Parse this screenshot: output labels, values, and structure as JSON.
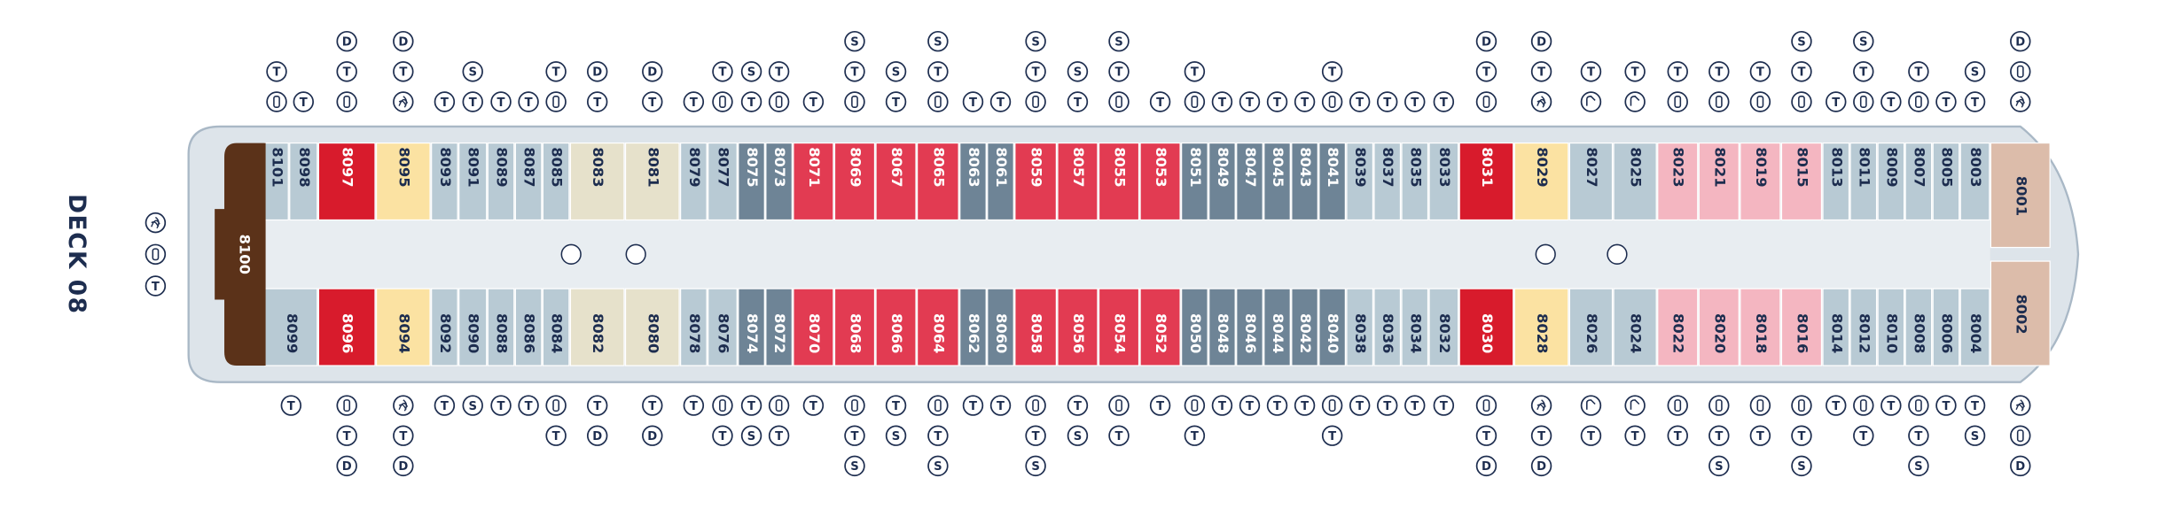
{
  "deck_label": "DECK 08",
  "deck_icons": [
    "T"
  ],
  "aft_cabin": {
    "number": "8100",
    "color": "#5b3219"
  },
  "cabins_top": [
    {
      "number": "8101",
      "color": "#b8cad4",
      "icons": [
        "T"
      ]
    },
    {
      "number": "8098",
      "color": "#b8cad4",
      "icons": [
        "T"
      ]
    },
    {
      "number": "8097",
      "color": "#d81b2c",
      "icons": [
        "D",
        "T"
      ]
    },
    {
      "number": "8095",
      "color": "#fbe2a2",
      "icons": [
        "D",
        "T"
      ]
    },
    {
      "number": "8093",
      "color": "#b8cad4",
      "icons": [
        "T"
      ]
    },
    {
      "number": "8091",
      "color": "#b8cad4",
      "icons": [
        "S",
        "T"
      ]
    },
    {
      "number": "8089",
      "color": "#b8cad4",
      "icons": [
        "T"
      ]
    },
    {
      "number": "8087",
      "color": "#b8cad4",
      "icons": [
        "T"
      ]
    },
    {
      "number": "8085",
      "color": "#b8cad4",
      "icons": [
        "T"
      ]
    },
    {
      "number": "8083",
      "color": "#e6e1cb",
      "icons": [
        "D",
        "T"
      ]
    },
    {
      "number": "8081",
      "color": "#e6e1cb",
      "icons": [
        "D",
        "T"
      ]
    },
    {
      "number": "8079",
      "color": "#b8cad4",
      "icons": [
        "T"
      ]
    },
    {
      "number": "8077",
      "color": "#b8cad4",
      "icons": [
        "T"
      ]
    },
    {
      "number": "8075",
      "color": "#6e8496",
      "icons": [
        "S",
        "T"
      ]
    },
    {
      "number": "8073",
      "color": "#6e8496",
      "icons": [
        "T"
      ]
    },
    {
      "number": "8071",
      "color": "#e23b52",
      "icons": [
        "T"
      ]
    },
    {
      "number": "8069",
      "color": "#e23b52",
      "icons": [
        "S",
        "T"
      ]
    },
    {
      "number": "8067",
      "color": "#e23b52",
      "icons": [
        "S",
        "T"
      ]
    },
    {
      "number": "8065",
      "color": "#e23b52",
      "icons": [
        "S",
        "T"
      ]
    },
    {
      "number": "8063",
      "color": "#6e8496",
      "icons": [
        "T"
      ]
    },
    {
      "number": "8061",
      "color": "#6e8496",
      "icons": [
        "T"
      ]
    },
    {
      "number": "8059",
      "color": "#e23b52",
      "icons": [
        "S",
        "T"
      ]
    },
    {
      "number": "8057",
      "color": "#e23b52",
      "icons": [
        "S",
        "T"
      ]
    },
    {
      "number": "8055",
      "color": "#e23b52",
      "icons": [
        "S",
        "T"
      ]
    },
    {
      "number": "8053",
      "color": "#e23b52",
      "icons": [
        "T"
      ]
    },
    {
      "number": "8051",
      "color": "#6e8496",
      "icons": [
        "T"
      ]
    },
    {
      "number": "8049",
      "color": "#6e8496",
      "icons": [
        "T"
      ]
    },
    {
      "number": "8047",
      "color": "#6e8496",
      "icons": [
        "T"
      ]
    },
    {
      "number": "8045",
      "color": "#6e8496",
      "icons": [
        "T"
      ]
    },
    {
      "number": "8043",
      "color": "#6e8496",
      "icons": [
        "T"
      ]
    },
    {
      "number": "8041",
      "color": "#6e8496",
      "icons": [
        "T"
      ]
    },
    {
      "number": "8039",
      "color": "#b8cad4",
      "icons": [
        "T"
      ]
    },
    {
      "number": "8037",
      "color": "#b8cad4",
      "icons": [
        "T"
      ]
    },
    {
      "number": "8035",
      "color": "#b8cad4",
      "icons": [
        "T"
      ]
    },
    {
      "number": "8033",
      "color": "#b8cad4",
      "icons": [
        "T"
      ]
    },
    {
      "number": "8031",
      "color": "#d81b2c",
      "icons": [
        "D",
        "T"
      ]
    },
    {
      "number": "8029",
      "color": "#fbe2a2",
      "icons": [
        "D",
        "T"
      ]
    },
    {
      "number": "8027",
      "color": "#b8cad4",
      "icons": [
        "T"
      ]
    },
    {
      "number": "8025",
      "color": "#b8cad4",
      "icons": [
        "T"
      ]
    },
    {
      "number": "8023",
      "color": "#f4b6c1",
      "icons": [
        "T"
      ]
    },
    {
      "number": "8021",
      "color": "#f4b6c1",
      "icons": [
        "T"
      ]
    },
    {
      "number": "8019",
      "color": "#f4b6c1",
      "icons": [
        "T"
      ]
    },
    {
      "number": "8015",
      "color": "#f4b6c1",
      "icons": [
        "S",
        "T"
      ]
    },
    {
      "number": "8013",
      "color": "#b8cad4",
      "icons": [
        "T"
      ]
    },
    {
      "number": "8011",
      "color": "#b8cad4",
      "icons": [
        "S",
        "T"
      ]
    },
    {
      "number": "8009",
      "color": "#b8cad4",
      "icons": [
        "T"
      ]
    },
    {
      "number": "8007",
      "color": "#b8cad4",
      "icons": [
        "T"
      ]
    },
    {
      "number": "8005",
      "color": "#b8cad4",
      "icons": [
        "T"
      ]
    },
    {
      "number": "8003",
      "color": "#b8cad4",
      "icons": [
        "S",
        "T"
      ]
    },
    {
      "number": "8001",
      "color": "#dcbcaa",
      "icons": [
        "D"
      ]
    }
  ],
  "cabins_bottom": [
    {
      "number": "8099",
      "color": "#b8cad4",
      "icons": [
        "T"
      ]
    },
    {
      "number": "8096",
      "color": "#d81b2c",
      "icons": [
        "T",
        "D"
      ]
    },
    {
      "number": "8094",
      "color": "#fbe2a2",
      "icons": [
        "T",
        "D"
      ]
    },
    {
      "number": "8092",
      "color": "#b8cad4",
      "icons": [
        "T"
      ]
    },
    {
      "number": "8090",
      "color": "#b8cad4",
      "icons": [
        "S"
      ]
    },
    {
      "number": "8088",
      "color": "#b8cad4",
      "icons": [
        "T"
      ]
    },
    {
      "number": "8086",
      "color": "#b8cad4",
      "icons": [
        "T"
      ]
    },
    {
      "number": "8084",
      "color": "#b8cad4",
      "icons": [
        "T"
      ]
    },
    {
      "number": "8082",
      "color": "#e6e1cb",
      "icons": [
        "T",
        "D"
      ]
    },
    {
      "number": "8080",
      "color": "#e6e1cb",
      "icons": [
        "T",
        "D"
      ]
    },
    {
      "number": "8078",
      "color": "#b8cad4",
      "icons": [
        "T"
      ]
    },
    {
      "number": "8076",
      "color": "#b8cad4",
      "icons": [
        "T"
      ]
    },
    {
      "number": "8074",
      "color": "#6e8496",
      "icons": [
        "T",
        "S"
      ]
    },
    {
      "number": "8072",
      "color": "#6e8496",
      "icons": [
        "T"
      ]
    },
    {
      "number": "8070",
      "color": "#e23b52",
      "icons": [
        "T"
      ]
    },
    {
      "number": "8068",
      "color": "#e23b52",
      "icons": [
        "T",
        "S"
      ]
    },
    {
      "number": "8066",
      "color": "#e23b52",
      "icons": [
        "T",
        "S"
      ]
    },
    {
      "number": "8064",
      "color": "#e23b52",
      "icons": [
        "T",
        "S"
      ]
    },
    {
      "number": "8062",
      "color": "#6e8496",
      "icons": [
        "T"
      ]
    },
    {
      "number": "8060",
      "color": "#6e8496",
      "icons": [
        "T"
      ]
    },
    {
      "number": "8058",
      "color": "#e23b52",
      "icons": [
        "T",
        "S"
      ]
    },
    {
      "number": "8056",
      "color": "#e23b52",
      "icons": [
        "T",
        "S"
      ]
    },
    {
      "number": "8054",
      "color": "#e23b52",
      "icons": [
        "T"
      ]
    },
    {
      "number": "8052",
      "color": "#e23b52",
      "icons": [
        "T"
      ]
    },
    {
      "number": "8050",
      "color": "#6e8496",
      "icons": [
        "T"
      ]
    },
    {
      "number": "8048",
      "color": "#6e8496",
      "icons": [
        "T"
      ]
    },
    {
      "number": "8046",
      "color": "#6e8496",
      "icons": [
        "T"
      ]
    },
    {
      "number": "8044",
      "color": "#6e8496",
      "icons": [
        "T"
      ]
    },
    {
      "number": "8042",
      "color": "#6e8496",
      "icons": [
        "T"
      ]
    },
    {
      "number": "8040",
      "color": "#6e8496",
      "icons": [
        "T"
      ]
    },
    {
      "number": "8038",
      "color": "#b8cad4",
      "icons": [
        "T"
      ]
    },
    {
      "number": "8036",
      "color": "#b8cad4",
      "icons": [
        "T"
      ]
    },
    {
      "number": "8034",
      "color": "#b8cad4",
      "icons": [
        "T"
      ]
    },
    {
      "number": "8032",
      "color": "#b8cad4",
      "icons": [
        "T"
      ]
    },
    {
      "number": "8030",
      "color": "#d81b2c",
      "icons": [
        "T",
        "D"
      ]
    },
    {
      "number": "8028",
      "color": "#fbe2a2",
      "icons": [
        "T",
        "D"
      ]
    },
    {
      "number": "8026",
      "color": "#b8cad4",
      "icons": [
        "T"
      ]
    },
    {
      "number": "8024",
      "color": "#b8cad4",
      "icons": [
        "T"
      ]
    },
    {
      "number": "8022",
      "color": "#f4b6c1",
      "icons": [
        "T"
      ]
    },
    {
      "number": "8020",
      "color": "#f4b6c1",
      "icons": [
        "T",
        "S"
      ]
    },
    {
      "number": "8018",
      "color": "#f4b6c1",
      "icons": [
        "T"
      ]
    },
    {
      "number": "8016",
      "color": "#f4b6c1",
      "icons": [
        "T",
        "S"
      ]
    },
    {
      "number": "8014",
      "color": "#b8cad4",
      "icons": [
        "T"
      ]
    },
    {
      "number": "8012",
      "color": "#b8cad4",
      "icons": [
        "T"
      ]
    },
    {
      "number": "8010",
      "color": "#b8cad4",
      "icons": [
        "T"
      ]
    },
    {
      "number": "8008",
      "color": "#b8cad4",
      "icons": [
        "T",
        "S"
      ]
    },
    {
      "number": "8006",
      "color": "#b8cad4",
      "icons": [
        "T"
      ]
    },
    {
      "number": "8004",
      "color": "#b8cad4",
      "icons": [
        "T",
        "S"
      ]
    },
    {
      "number": "8002",
      "color": "#dcbcaa",
      "icons": [
        "D"
      ]
    }
  ]
}
